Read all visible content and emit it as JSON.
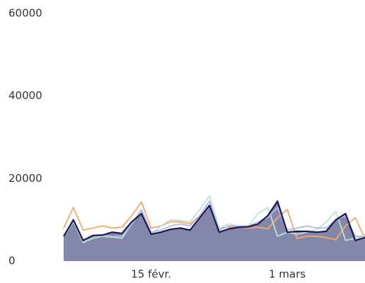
{
  "chart_data": {
    "type": "line",
    "categories": [
      null,
      null,
      null,
      null,
      null,
      null,
      null,
      null,
      null,
      "15 févr.",
      null,
      null,
      null,
      null,
      null,
      null,
      null,
      null,
      null,
      null,
      null,
      null,
      null,
      "1 mars",
      null,
      null,
      null,
      null,
      null,
      null,
      null,
      null
    ],
    "series": [
      {
        "color": "#f2a86b",
        "values": [
          8000,
          13000,
          7500,
          8000,
          8500,
          8000,
          8200,
          11000,
          14300,
          8000,
          8500,
          9500,
          9500,
          9000,
          11000,
          14500,
          8000,
          8200,
          8300,
          8000,
          8200,
          7800,
          10500,
          12500,
          5500,
          6000,
          6000,
          5700,
          5200,
          8500,
          10500,
          5500
        ]
      },
      {
        "color": "#b9e3d4",
        "values": [
          6000,
          9500,
          4500,
          5500,
          6000,
          5800,
          5500,
          9000,
          12000,
          6500,
          8500,
          10000,
          9800,
          9500,
          12500,
          15800,
          8000,
          9000,
          8500,
          8500,
          11500,
          13000,
          6000,
          7000,
          6500,
          7000,
          7500,
          9500,
          12000,
          5000,
          5500,
          6000
        ]
      },
      {
        "color": "#b3b6e6",
        "values": [
          6200,
          9500,
          4800,
          6000,
          6200,
          6000,
          6000,
          9000,
          12500,
          7000,
          7500,
          8500,
          9000,
          8500,
          11000,
          14500,
          7500,
          8500,
          8500,
          8500,
          9500,
          10500,
          13000,
          7500,
          8000,
          8500,
          8000,
          8000,
          10000,
          11000,
          6000,
          6000
        ]
      },
      {
        "color": "#1b1a4a",
        "area": true,
        "fill": "#8587aa",
        "values": [
          6000,
          10000,
          5000,
          6200,
          6300,
          7000,
          6700,
          9500,
          11500,
          6500,
          7000,
          7700,
          8000,
          7500,
          10500,
          13500,
          7000,
          7800,
          8200,
          8300,
          9000,
          11000,
          14500,
          7000,
          7200,
          7200,
          7000,
          7200,
          10000,
          11500,
          5000,
          5700
        ]
      }
    ],
    "ylim": [
      0,
      60000
    ],
    "yticks": [
      0,
      20000,
      40000,
      60000
    ],
    "grid": false
  }
}
